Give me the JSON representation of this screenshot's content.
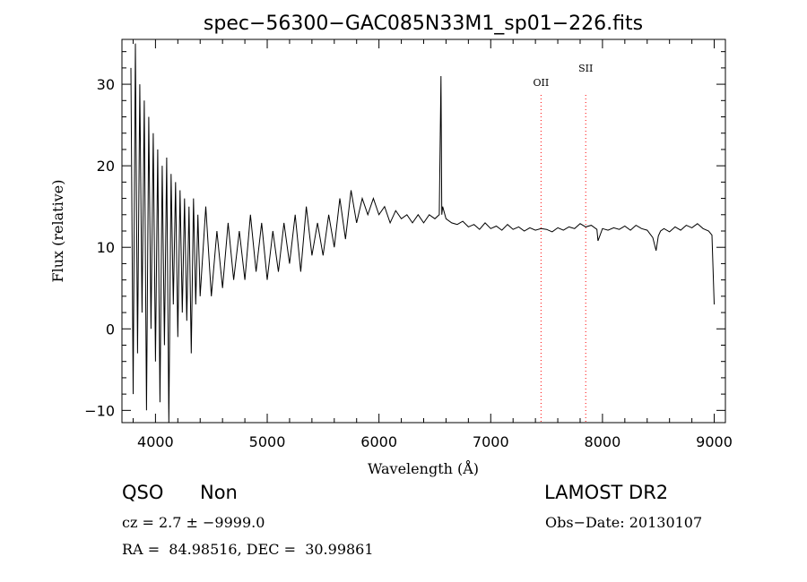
{
  "chart_data": {
    "type": "line",
    "title": "spec−56300−GAC085N33M1_sp01−226.fits",
    "xlabel": "Wavelength (Å)",
    "ylabel": "Flux (relative)",
    "xlim": [
      3700,
      9100
    ],
    "ylim": [
      -11.5,
      35.5
    ],
    "xticks": [
      4000,
      5000,
      6000,
      7000,
      8000,
      9000
    ],
    "yticks": [
      -10,
      0,
      10,
      20,
      30
    ],
    "ytick_labels": [
      "−10",
      "0",
      "10",
      "20",
      "30"
    ],
    "grid": false,
    "series": [
      {
        "color": "#000000",
        "x": [
          3780,
          3800,
          3820,
          3840,
          3860,
          3880,
          3900,
          3920,
          3940,
          3960,
          3980,
          4000,
          4020,
          4040,
          4060,
          4080,
          4100,
          4120,
          4140,
          4160,
          4180,
          4200,
          4220,
          4240,
          4260,
          4280,
          4300,
          4320,
          4340,
          4360,
          4380,
          4400,
          4450,
          4500,
          4550,
          4600,
          4650,
          4700,
          4750,
          4800,
          4850,
          4900,
          4950,
          5000,
          5050,
          5100,
          5150,
          5200,
          5250,
          5300,
          5350,
          5400,
          5450,
          5500,
          5550,
          5600,
          5650,
          5700,
          5750,
          5800,
          5850,
          5900,
          5950,
          6000,
          6050,
          6100,
          6150,
          6200,
          6250,
          6300,
          6350,
          6400,
          6450,
          6500,
          6540,
          6555,
          6562,
          6570,
          6600,
          6650,
          6700,
          6750,
          6800,
          6850,
          6900,
          6950,
          7000,
          7050,
          7100,
          7150,
          7200,
          7250,
          7300,
          7350,
          7400,
          7450,
          7500,
          7550,
          7600,
          7650,
          7700,
          7750,
          7800,
          7850,
          7900,
          7950,
          7960,
          8000,
          8050,
          8100,
          8150,
          8200,
          8250,
          8300,
          8350,
          8400,
          8450,
          8480,
          8500,
          8520,
          8550,
          8600,
          8650,
          8700,
          8750,
          8800,
          8850,
          8900,
          8950,
          8980,
          9000
        ],
        "y": [
          32,
          -8,
          35,
          -3,
          30,
          2,
          28,
          -10,
          26,
          0,
          24,
          -4,
          22,
          -9,
          20,
          -2,
          21,
          -12,
          19,
          3,
          18,
          -1,
          17,
          2,
          16,
          1,
          15,
          -3,
          16,
          3,
          14,
          4,
          15,
          4,
          12,
          5,
          13,
          6,
          12,
          6,
          14,
          7,
          13,
          6,
          12,
          7,
          13,
          8,
          14,
          7,
          15,
          9,
          13,
          9,
          14,
          10,
          16,
          11,
          17,
          13,
          16,
          14,
          16,
          14,
          15,
          13,
          14.5,
          13.5,
          14,
          13,
          14,
          13,
          14,
          13.5,
          14,
          31,
          14,
          15,
          13.5,
          13,
          12.8,
          13.2,
          12.5,
          12.8,
          12.2,
          13,
          12.3,
          12.6,
          12.1,
          12.8,
          12.2,
          12.5,
          12,
          12.4,
          12.1,
          12.3,
          12.2,
          11.9,
          12.4,
          12.1,
          12.5,
          12.3,
          12.9,
          12.5,
          12.7,
          12.2,
          10.8,
          12.3,
          12.1,
          12.4,
          12.2,
          12.6,
          12.1,
          12.7,
          12.3,
          12.1,
          11.2,
          9.6,
          11.4,
          12,
          12.3,
          11.9,
          12.5,
          12.1,
          12.7,
          12.4,
          12.9,
          12.3,
          12,
          11.5,
          3
        ]
      }
    ],
    "annotations": [
      {
        "label": "OII",
        "x": 7450
      },
      {
        "label": "SII",
        "x": 7850
      }
    ]
  },
  "info": {
    "class": "QSO",
    "subclass": "Non",
    "survey": "LAMOST DR2",
    "cz": "cz = 2.7 ± −9999.0",
    "obs_date": "Obs−Date: 20130107",
    "coords": "RA =  84.98516, DEC =  30.99861"
  },
  "colors": {
    "line_marker": "#ff0000",
    "spectrum": "#000000",
    "axes": "#000000"
  }
}
